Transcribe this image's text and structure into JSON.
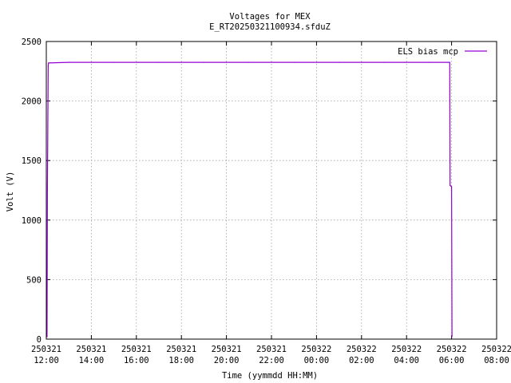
{
  "chart_data": {
    "type": "line",
    "title": "Voltages for MEX",
    "subtitle": "E_RT20250321100934.sfduZ",
    "xlabel": "Time (yymmdd HH:MM)",
    "ylabel": "Volt (V)",
    "xlim": [
      "2025-03-21 12:00",
      "2025-03-22 08:00"
    ],
    "ylim": [
      0,
      2500
    ],
    "grid": true,
    "legend_position": "top-right",
    "x_ticks": [
      {
        "date": "250321",
        "time": "12:00"
      },
      {
        "date": "250321",
        "time": "14:00"
      },
      {
        "date": "250321",
        "time": "16:00"
      },
      {
        "date": "250321",
        "time": "18:00"
      },
      {
        "date": "250321",
        "time": "20:00"
      },
      {
        "date": "250321",
        "time": "22:00"
      },
      {
        "date": "250322",
        "time": "00:00"
      },
      {
        "date": "250322",
        "time": "02:00"
      },
      {
        "date": "250322",
        "time": "04:00"
      },
      {
        "date": "250322",
        "time": "06:00"
      },
      {
        "date": "250322",
        "time": "08:00"
      }
    ],
    "y_ticks": [
      "0",
      "500",
      "1000",
      "1500",
      "2000",
      "2500"
    ],
    "series": [
      {
        "name": "ELS bias mcp",
        "color": "#9400d3",
        "x": [
          "2025-03-21 12:02",
          "2025-03-21 12:03",
          "2025-03-21 12:05",
          "2025-03-21 12:06",
          "2025-03-21 13:00",
          "2025-03-21 15:00",
          "2025-03-21 17:00",
          "2025-03-21 19:00",
          "2025-03-21 21:00",
          "2025-03-21 23:00",
          "2025-03-22 01:00",
          "2025-03-22 03:00",
          "2025-03-22 05:00",
          "2025-03-22 05:55",
          "2025-03-22 05:56",
          "2025-03-22 06:00",
          "2025-03-22 06:01"
        ],
        "y": [
          20,
          1280,
          2300,
          2320,
          2325,
          2325,
          2325,
          2325,
          2325,
          2325,
          2325,
          2325,
          2325,
          2325,
          1290,
          1280,
          20
        ]
      }
    ]
  }
}
